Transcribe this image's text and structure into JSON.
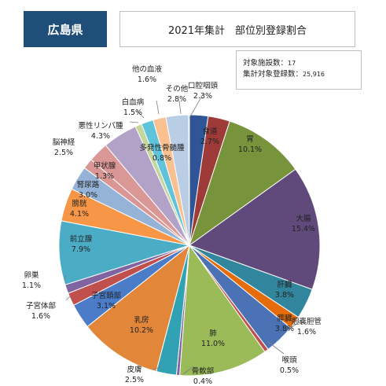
{
  "header": {
    "prefecture": "広島県",
    "title": "2021年集計　部位別登録割合"
  },
  "stats": {
    "facilities_label": "対象施設数：",
    "facilities_value": "17",
    "registrations_label": "集計対象登録数：",
    "registrations_value": "25,916"
  },
  "chart_data": {
    "type": "pie",
    "title": "2021年集計　部位別登録割合",
    "start": "12 o'clock, clockwise",
    "slices": [
      {
        "name": "口腔咽頭",
        "value": 2.3,
        "label": "2.3%",
        "color": "#2f5597"
      },
      {
        "name": "食道",
        "value": 2.7,
        "label": "2.7%",
        "color": "#9e3a38"
      },
      {
        "name": "胃",
        "value": 10.1,
        "label": "10.1%",
        "color": "#77933c"
      },
      {
        "name": "大腸",
        "value": 15.4,
        "label": "15.4%",
        "color": "#604a7b"
      },
      {
        "name": "肝臓",
        "value": 3.8,
        "label": "3.8%",
        "color": "#31859c"
      },
      {
        "name": "胆嚢胆管",
        "value": 1.6,
        "label": "1.6%",
        "color": "#e46c0a"
      },
      {
        "name": "膵臓",
        "value": 3.8,
        "label": "3.8%",
        "color": "#4a72b5"
      },
      {
        "name": "喉頭",
        "value": 0.5,
        "label": "0.5%",
        "color": "#c0504d"
      },
      {
        "name": "肺",
        "value": 11.0,
        "label": "11.0%",
        "color": "#9bbb59"
      },
      {
        "name": "骨軟部",
        "value": 0.4,
        "label": "0.4%",
        "color": "#8064a2"
      },
      {
        "name": "皮膚",
        "value": 2.5,
        "label": "2.5%",
        "color": "#31a2b3"
      },
      {
        "name": "乳房",
        "value": 10.2,
        "label": "10.2%",
        "color": "#e2873a"
      },
      {
        "name": "子宮頚部",
        "value": 3.1,
        "label": "3.1%",
        "color": "#4a7cc8"
      },
      {
        "name": "子宮体部",
        "value": 1.6,
        "label": "1.6%",
        "color": "#c0504d"
      },
      {
        "name": "卵巣",
        "value": 1.1,
        "label": "1.1%",
        "color": "#8064a2"
      },
      {
        "name": "前立腺",
        "value": 7.9,
        "label": "7.9%",
        "color": "#4bacc6"
      },
      {
        "name": "膀胱",
        "value": 4.1,
        "label": "4.1%",
        "color": "#f79646"
      },
      {
        "name": "腎尿路",
        "value": 3.0,
        "label": "3.0%",
        "color": "#95b3d7"
      },
      {
        "name": "甲状腺",
        "value": 1.3,
        "label": "1.3%",
        "color": "#da9694"
      },
      {
        "name": "脳神経",
        "value": 2.5,
        "label": "2.5%",
        "color": "#d99795"
      },
      {
        "name": "悪性リンパ腫",
        "value": 4.3,
        "label": "4.3%",
        "color": "#b3a2c7"
      },
      {
        "name": "多発性骨髄腫",
        "value": 0.8,
        "label": "0.8%",
        "color": "#c3d69b"
      },
      {
        "name": "白血病",
        "value": 1.5,
        "label": "1.5%",
        "color": "#5fc3d9"
      },
      {
        "name": "他の血液",
        "value": 1.6,
        "label": "1.6%",
        "color": "#fac090"
      },
      {
        "name": "その他",
        "value": 2.8,
        "label": "2.8%",
        "color": "#b9cde5"
      },
      {
        "name": "(gap)",
        "value": 0,
        "label": "",
        "color": "#e6b9b8"
      }
    ]
  }
}
